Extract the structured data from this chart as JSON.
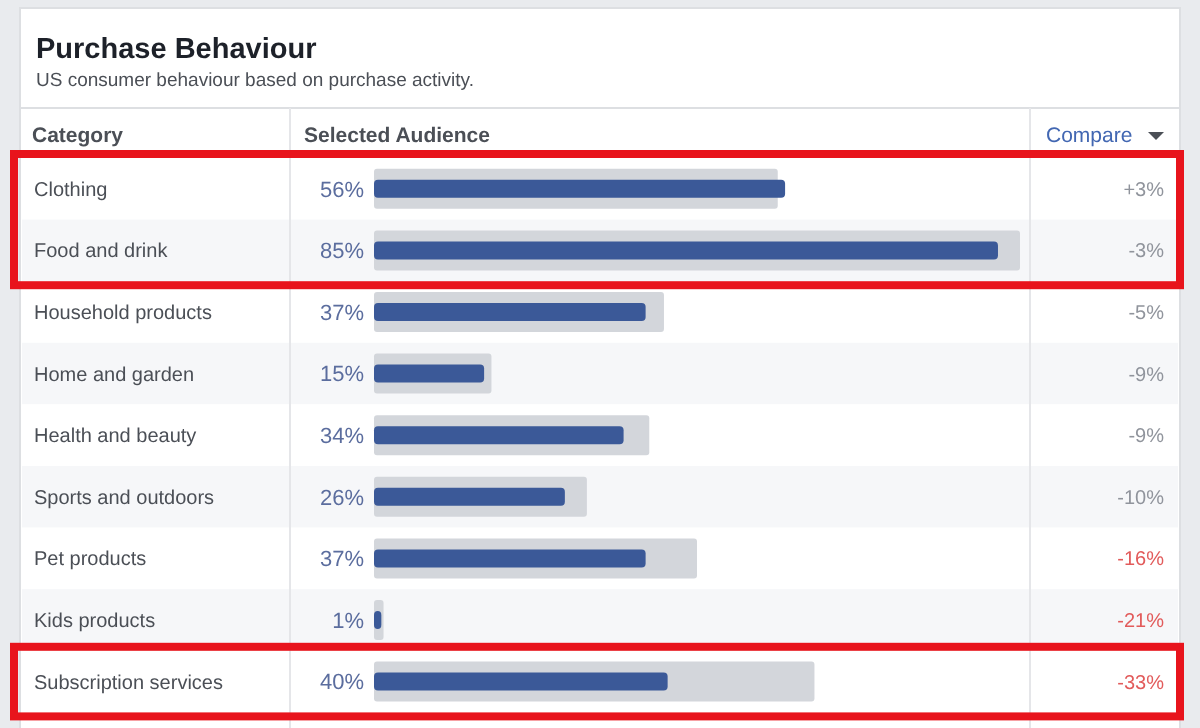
{
  "chart_data": {
    "type": "bar",
    "orientation": "horizontal",
    "title": "Purchase Behaviour",
    "subtitle": "US consumer behaviour based on purchase activity.",
    "ylabel": "Category",
    "xlabel": "Selected Audience",
    "categories": [
      "Clothing",
      "Food and drink",
      "Household products",
      "Home and garden",
      "Health and beauty",
      "Sports and outdoors",
      "Pet products",
      "Kids products",
      "Subscription services"
    ],
    "series": [
      {
        "color": "#d3d6db",
        "values": [
          55,
          88,
          39.5,
          16,
          37.5,
          29,
          44,
          1.3,
          60
        ]
      },
      {
        "color": "#3b5998",
        "values": [
          56,
          85,
          37,
          15,
          34,
          26,
          37,
          1,
          40
        ],
        "value_labels": [
          "56%",
          "85%",
          "37%",
          "15%",
          "34%",
          "26%",
          "37%",
          "1%",
          "40%"
        ]
      }
    ],
    "annotations": [
      "Compare",
      "+3%",
      "-3%",
      "-5%",
      "-9%",
      "-9%",
      "-10%",
      "-16%",
      "-21%",
      "-33%"
    ],
    "tick_labels": "y"
  }
}
